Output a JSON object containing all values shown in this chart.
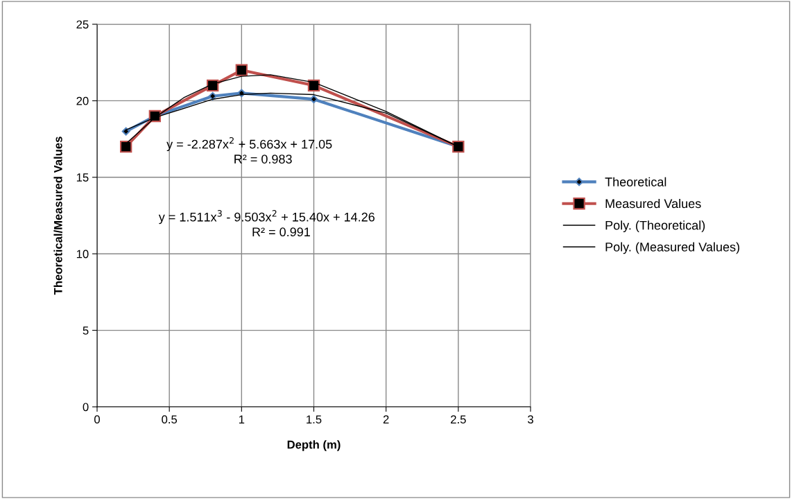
{
  "chart_data": {
    "type": "line",
    "xlabel": "Depth (m)",
    "ylabel": "Theoretical/Measured Values",
    "xlim": [
      0,
      3
    ],
    "xticks": [
      0,
      0.5,
      1,
      1.5,
      2,
      2.5,
      3
    ],
    "ylim": [
      0,
      25
    ],
    "yticks": [
      0,
      5,
      10,
      15,
      20,
      25
    ],
    "grid": true,
    "legend": "right",
    "line_style": "solid",
    "series": [
      {
        "name": "Theoretical",
        "color": "#4f81bd",
        "marker": "diamond",
        "x": [
          0.2,
          0.4,
          0.8,
          1.0,
          1.5,
          2.5
        ],
        "values": [
          18,
          19,
          20.3,
          20.5,
          20.1,
          17
        ]
      },
      {
        "name": "Measured Values",
        "color": "#c0504d",
        "marker": "square",
        "x": [
          0.2,
          0.4,
          0.8,
          1.0,
          1.5,
          2.5
        ],
        "values": [
          17,
          19,
          21,
          22,
          21,
          17
        ]
      },
      {
        "name": "Poly. (Theoretical)",
        "color": "#000000",
        "marker": "none",
        "x": [
          0.2,
          0.4,
          0.8,
          1.0,
          1.2,
          1.5,
          2.0,
          2.5
        ],
        "values": [
          18.1,
          18.9,
          20.1,
          20.4,
          20.5,
          20.4,
          19.2,
          17.0
        ]
      },
      {
        "name": "Poly. (Measured Values)",
        "color": "#000000",
        "marker": "none",
        "x": [
          0.2,
          0.4,
          0.6,
          0.8,
          1.0,
          1.2,
          1.5,
          2.0,
          2.5
        ],
        "values": [
          17.2,
          18.9,
          20.2,
          21.1,
          21.6,
          21.7,
          21.2,
          19.3,
          17.0
        ]
      }
    ],
    "annotations": [
      "y = -2.287x$^{2}$ + 5.663x + 17.05",
      "R² = 0.983",
      "y = 1.511x$^{3}$ - 9.503x$^{2}$ + 15.40x + 14.26",
      "R² = 0.991"
    ]
  }
}
